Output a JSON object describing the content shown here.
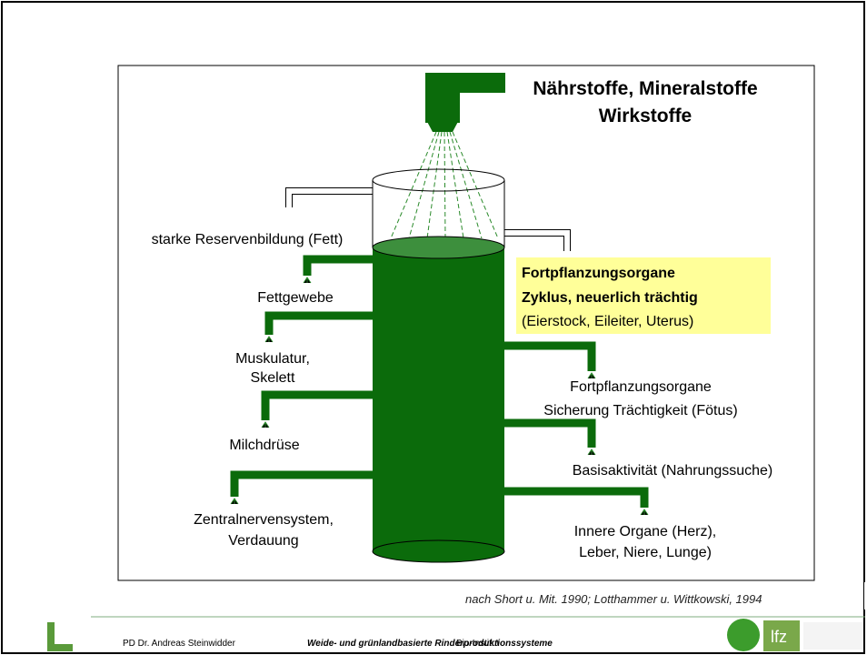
{
  "title": [
    "Nährstoffe, Mineralstoffe",
    "Wirkstoffe"
  ],
  "left_outputs": [
    {
      "lines": [
        "starke Reservenbildung (Fett)"
      ]
    },
    {
      "lines": [
        "Fettgewebe"
      ]
    },
    {
      "lines": [
        "Muskulatur,",
        "Skelett"
      ]
    },
    {
      "lines": [
        "Milchdrüse"
      ]
    },
    {
      "lines": [
        "Zentralnervensystem,",
        "Verdauung"
      ]
    }
  ],
  "highlight": {
    "lines": [
      "Fortpflanzungsorgane",
      "Zyklus, neuerlich trächtig",
      "(Eierstock, Eileiter, Uterus)"
    ]
  },
  "right_outputs": [
    {
      "lines": [
        "Fortpflanzungsorgane",
        "Sicherung Trächtigkeit (Fötus)"
      ]
    },
    {
      "lines": [
        "Basisaktivität (Nahrungssuche)"
      ]
    },
    {
      "lines": [
        "Innere Organe (Herz),",
        "Leber, Niere, Lunge)"
      ]
    }
  ],
  "citation": "nach Short u. Mit. 1990; Lotthammer u. Wittkowski, 1994",
  "footer": {
    "author": "PD Dr. Andreas Steinwidder",
    "course": "Weide- und grünlandbasierte Rinderproduktionssysteme",
    "institute": "Bio-Institut",
    "logo": "lfz"
  }
}
